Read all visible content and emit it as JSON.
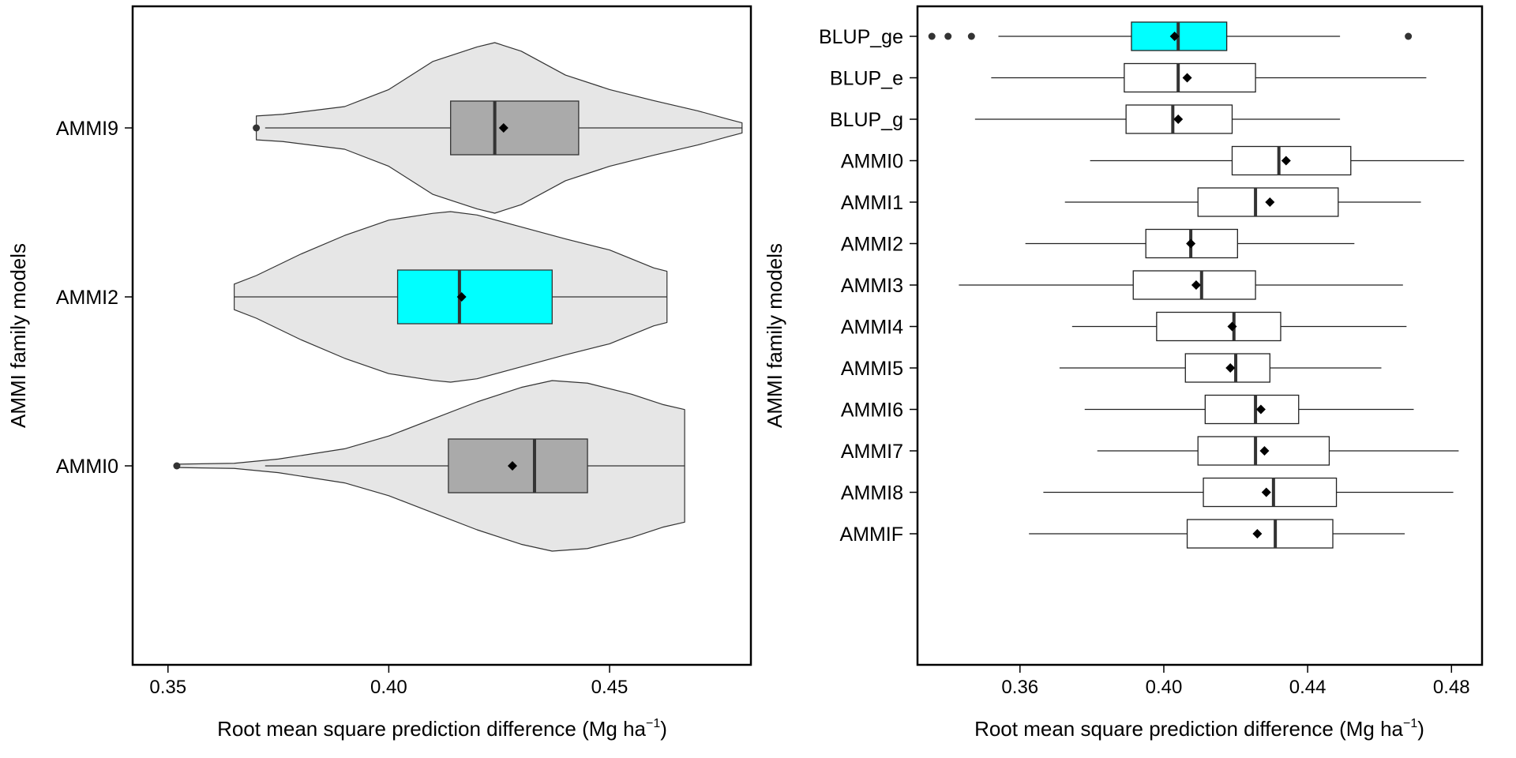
{
  "chart_data": [
    {
      "type": "violin",
      "xlabel": "Root mean square prediction difference (Mg ha",
      "xlabel_superscript": "−1",
      "xlabel_close": ")",
      "ylabel": "AMMI family models",
      "xlim": [
        0.342,
        0.482
      ],
      "xticks": [
        0.35,
        0.4,
        0.45
      ],
      "xtick_labels": [
        "0.35",
        "0.40",
        "0.45"
      ],
      "grid": false,
      "colors": {
        "violin": "#e6e6e6",
        "box": "#aaaaaa",
        "highlight": "#00ffff"
      },
      "groups": [
        {
          "label": "AMMI9",
          "highlight": false,
          "box": {
            "whisker_low": 0.372,
            "q1": 0.414,
            "median": 0.424,
            "q3": 0.443,
            "whisker_high": 0.48
          },
          "mean": 0.426,
          "outliers": [
            0.37
          ],
          "density": [
            [
              0.37,
              0.14
            ],
            [
              0.376,
              0.16
            ],
            [
              0.39,
              0.25
            ],
            [
              0.4,
              0.45
            ],
            [
              0.41,
              0.78
            ],
            [
              0.42,
              0.95
            ],
            [
              0.424,
              1.0
            ],
            [
              0.43,
              0.9
            ],
            [
              0.44,
              0.62
            ],
            [
              0.45,
              0.45
            ],
            [
              0.46,
              0.32
            ],
            [
              0.47,
              0.2
            ],
            [
              0.477,
              0.1
            ],
            [
              0.48,
              0.06
            ]
          ]
        },
        {
          "label": "AMMI2",
          "highlight": true,
          "box": {
            "whisker_low": 0.365,
            "q1": 0.402,
            "median": 0.416,
            "q3": 0.437,
            "whisker_high": 0.463
          },
          "mean": 0.4165,
          "outliers": [],
          "density": [
            [
              0.365,
              0.15
            ],
            [
              0.37,
              0.25
            ],
            [
              0.38,
              0.5
            ],
            [
              0.39,
              0.72
            ],
            [
              0.4,
              0.9
            ],
            [
              0.41,
              0.98
            ],
            [
              0.414,
              1.0
            ],
            [
              0.42,
              0.96
            ],
            [
              0.43,
              0.82
            ],
            [
              0.44,
              0.68
            ],
            [
              0.45,
              0.55
            ],
            [
              0.46,
              0.34
            ],
            [
              0.463,
              0.3
            ]
          ]
        },
        {
          "label": "AMMI0",
          "highlight": false,
          "box": {
            "whisker_low": 0.372,
            "q1": 0.4135,
            "median": 0.433,
            "q3": 0.445,
            "whisker_high": 0.467
          },
          "mean": 0.428,
          "outliers": [
            0.352
          ],
          "density": [
            [
              0.352,
              0.02
            ],
            [
              0.365,
              0.03
            ],
            [
              0.375,
              0.08
            ],
            [
              0.39,
              0.2
            ],
            [
              0.4,
              0.35
            ],
            [
              0.41,
              0.55
            ],
            [
              0.42,
              0.75
            ],
            [
              0.43,
              0.92
            ],
            [
              0.437,
              1.0
            ],
            [
              0.445,
              0.97
            ],
            [
              0.455,
              0.84
            ],
            [
              0.462,
              0.72
            ],
            [
              0.467,
              0.66
            ]
          ]
        }
      ]
    },
    {
      "type": "boxplot",
      "xlabel": "Root mean square prediction difference (Mg ha",
      "xlabel_superscript": "−1",
      "xlabel_close": ")",
      "ylabel": "AMMI family models",
      "xlim": [
        0.3315,
        0.4885
      ],
      "xticks": [
        0.36,
        0.4,
        0.44,
        0.48
      ],
      "xtick_labels": [
        "0.36",
        "0.40",
        "0.44",
        "0.48"
      ],
      "grid": false,
      "colors": {
        "box": "#ffffff",
        "highlight": "#00ffff"
      },
      "groups": [
        {
          "label": "BLUP_ge",
          "highlight": true,
          "box": {
            "whisker_low": 0.354,
            "q1": 0.391,
            "median": 0.404,
            "q3": 0.4175,
            "whisker_high": 0.449
          },
          "mean": 0.403,
          "outliers": [
            0.3355,
            0.34,
            0.3465,
            0.468
          ]
        },
        {
          "label": "BLUP_e",
          "highlight": false,
          "box": {
            "whisker_low": 0.352,
            "q1": 0.389,
            "median": 0.404,
            "q3": 0.4255,
            "whisker_high": 0.473
          },
          "mean": 0.4065,
          "outliers": []
        },
        {
          "label": "BLUP_g",
          "highlight": false,
          "box": {
            "whisker_low": 0.3475,
            "q1": 0.3895,
            "median": 0.4025,
            "q3": 0.419,
            "whisker_high": 0.449
          },
          "mean": 0.404,
          "outliers": []
        },
        {
          "label": "AMMI0",
          "highlight": false,
          "box": {
            "whisker_low": 0.3795,
            "q1": 0.419,
            "median": 0.432,
            "q3": 0.452,
            "whisker_high": 0.4835
          },
          "mean": 0.434,
          "outliers": []
        },
        {
          "label": "AMMI1",
          "highlight": false,
          "box": {
            "whisker_low": 0.3725,
            "q1": 0.4095,
            "median": 0.4255,
            "q3": 0.4485,
            "whisker_high": 0.4715
          },
          "mean": 0.4295,
          "outliers": []
        },
        {
          "label": "AMMI2",
          "highlight": false,
          "box": {
            "whisker_low": 0.3615,
            "q1": 0.395,
            "median": 0.4075,
            "q3": 0.4205,
            "whisker_high": 0.453
          },
          "mean": 0.4075,
          "outliers": []
        },
        {
          "label": "AMMI3",
          "highlight": false,
          "box": {
            "whisker_low": 0.343,
            "q1": 0.3915,
            "median": 0.4105,
            "q3": 0.4255,
            "whisker_high": 0.4665
          },
          "mean": 0.409,
          "outliers": []
        },
        {
          "label": "AMMI4",
          "highlight": false,
          "box": {
            "whisker_low": 0.3745,
            "q1": 0.398,
            "median": 0.4195,
            "q3": 0.4325,
            "whisker_high": 0.4675
          },
          "mean": 0.419,
          "outliers": []
        },
        {
          "label": "AMMI5",
          "highlight": false,
          "box": {
            "whisker_low": 0.371,
            "q1": 0.406,
            "median": 0.42,
            "q3": 0.4295,
            "whisker_high": 0.4605
          },
          "mean": 0.4185,
          "outliers": []
        },
        {
          "label": "AMMI6",
          "highlight": false,
          "box": {
            "whisker_low": 0.378,
            "q1": 0.4115,
            "median": 0.4255,
            "q3": 0.4375,
            "whisker_high": 0.4695
          },
          "mean": 0.427,
          "outliers": []
        },
        {
          "label": "AMMI7",
          "highlight": false,
          "box": {
            "whisker_low": 0.3815,
            "q1": 0.4095,
            "median": 0.4255,
            "q3": 0.446,
            "whisker_high": 0.482
          },
          "mean": 0.428,
          "outliers": []
        },
        {
          "label": "AMMI8",
          "highlight": false,
          "box": {
            "whisker_low": 0.3665,
            "q1": 0.411,
            "median": 0.4305,
            "q3": 0.448,
            "whisker_high": 0.4805
          },
          "mean": 0.4285,
          "outliers": []
        },
        {
          "label": "AMMIF",
          "highlight": false,
          "box": {
            "whisker_low": 0.3625,
            "q1": 0.4065,
            "median": 0.431,
            "q3": 0.447,
            "whisker_high": 0.467
          },
          "mean": 0.426,
          "outliers": []
        }
      ]
    }
  ]
}
